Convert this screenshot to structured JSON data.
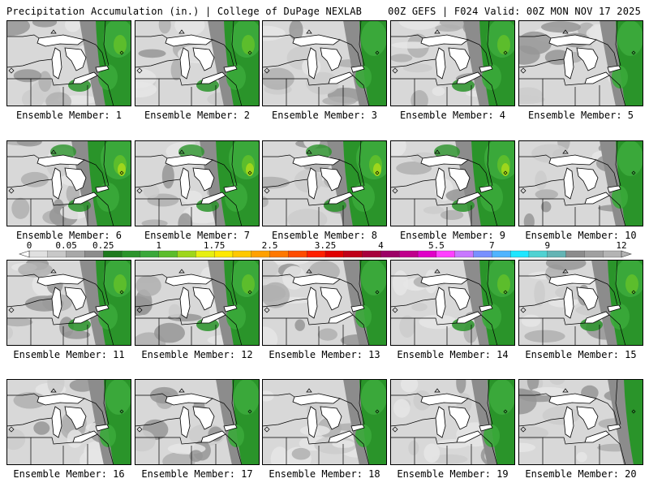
{
  "header": {
    "left": "Precipitation Accumulation (in.) | College of DuPage NEXLAB",
    "right": "00Z GEFS | F024 Valid: 00Z MON NOV 17 2025"
  },
  "label_prefix": "Ensemble Member: ",
  "members": [
    {
      "number": "1",
      "wet_level": 3
    },
    {
      "number": "2",
      "wet_level": 3
    },
    {
      "number": "3",
      "wet_level": 2
    },
    {
      "number": "4",
      "wet_level": 3
    },
    {
      "number": "5",
      "wet_level": 2
    },
    {
      "number": "6",
      "wet_level": 4
    },
    {
      "number": "7",
      "wet_level": 4
    },
    {
      "number": "8",
      "wet_level": 4
    },
    {
      "number": "9",
      "wet_level": 4
    },
    {
      "number": "10",
      "wet_level": 2
    },
    {
      "number": "11",
      "wet_level": 3
    },
    {
      "number": "12",
      "wet_level": 3
    },
    {
      "number": "13",
      "wet_level": 2
    },
    {
      "number": "14",
      "wet_level": 3
    },
    {
      "number": "15",
      "wet_level": 3
    },
    {
      "number": "16",
      "wet_level": 2
    },
    {
      "number": "17",
      "wet_level": 2
    },
    {
      "number": "18",
      "wet_level": 2
    },
    {
      "number": "19",
      "wet_level": 2
    },
    {
      "number": "20",
      "wet_level": 1
    }
  ],
  "colorbar": {
    "labels": [
      "0",
      "0.05",
      "0.25",
      "1",
      "1.75",
      "2.5",
      "3.25",
      "4",
      "5.5",
      "7",
      "9",
      "12"
    ],
    "colors": [
      "#e0e0e0",
      "#c8c8c8",
      "#a8a8a8",
      "#8c8c8c",
      "#1e7a1e",
      "#2a942a",
      "#3aa83a",
      "#5cbd2c",
      "#9ed61c",
      "#e6ef12",
      "#ffe800",
      "#ffc800",
      "#ffa000",
      "#ff7800",
      "#ff4c00",
      "#ff2000",
      "#e00000",
      "#c00018",
      "#a8003c",
      "#9c0066",
      "#c0008c",
      "#e000c8",
      "#ff40ff",
      "#c878ff",
      "#7890ff",
      "#50b4ff",
      "#1ee6ff",
      "#50d2d2",
      "#64b4b4",
      "#8c8c8c",
      "#a0a0a0",
      "#b4b4b4"
    ]
  },
  "colors": {
    "water": "#ffffff",
    "dry": "#d8d8d8",
    "border": "#000000"
  }
}
